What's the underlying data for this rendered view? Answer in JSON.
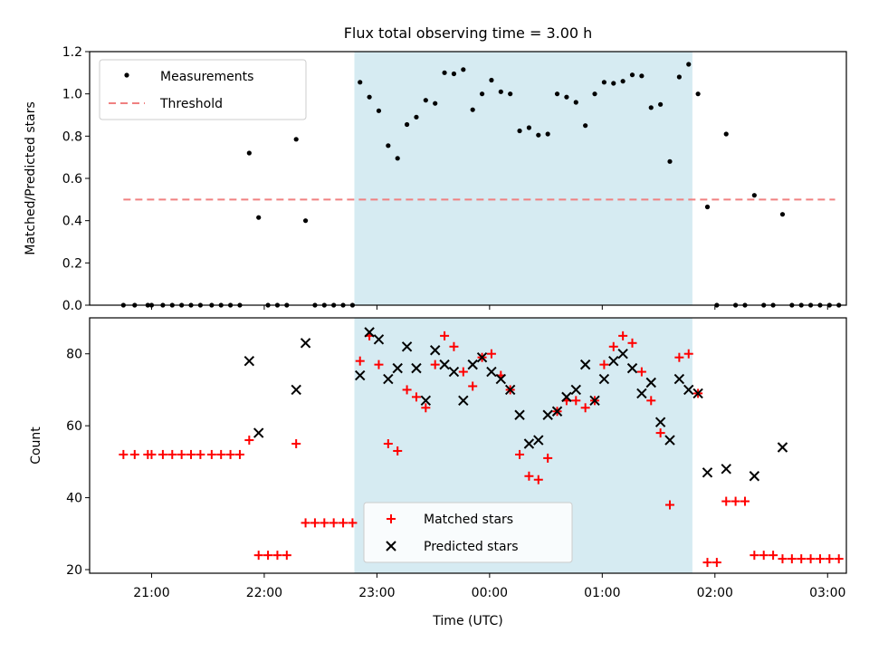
{
  "chart_data": [
    {
      "type": "scatter",
      "title": "Flux total observing time = 3.00 h",
      "xlabel": "",
      "ylabel": "Matched/Predicted stars",
      "ylim": [
        0,
        1.2
      ],
      "yticks": [
        "0.0",
        "0.2",
        "0.4",
        "0.6",
        "0.8",
        "1.0",
        "1.2"
      ],
      "xlim": [
        "20:27",
        "03:10"
      ],
      "shaded_interval": [
        "22:48",
        "01:48"
      ],
      "grid": false,
      "legend_position": "upper-left",
      "series": [
        {
          "name": "Measurements",
          "marker": "dot",
          "color": "#000000",
          "points": [
            [
              "20:45",
              0.0
            ],
            [
              "20:51",
              0.0
            ],
            [
              "20:58",
              0.0
            ],
            [
              "21:00",
              0.0
            ],
            [
              "21:06",
              0.0
            ],
            [
              "21:11",
              0.0
            ],
            [
              "21:16",
              0.0
            ],
            [
              "21:21",
              0.0
            ],
            [
              "21:26",
              0.0
            ],
            [
              "21:32",
              0.0
            ],
            [
              "21:37",
              0.0
            ],
            [
              "21:42",
              0.0
            ],
            [
              "21:47",
              0.0
            ],
            [
              "21:52",
              0.72
            ],
            [
              "21:57",
              0.415
            ],
            [
              "22:02",
              0.0
            ],
            [
              "22:07",
              0.0
            ],
            [
              "22:12",
              0.0
            ],
            [
              "22:17",
              0.785
            ],
            [
              "22:22",
              0.4
            ],
            [
              "22:27",
              0.0
            ],
            [
              "22:32",
              0.0
            ],
            [
              "22:37",
              0.0
            ],
            [
              "22:42",
              0.0
            ],
            [
              "22:47",
              0.0
            ],
            [
              "22:51",
              1.055
            ],
            [
              "22:56",
              0.985
            ],
            [
              "23:01",
              0.92
            ],
            [
              "23:06",
              0.755
            ],
            [
              "23:11",
              0.695
            ],
            [
              "23:16",
              0.855
            ],
            [
              "23:21",
              0.89
            ],
            [
              "23:26",
              0.97
            ],
            [
              "23:31",
              0.955
            ],
            [
              "23:36",
              1.1
            ],
            [
              "23:41",
              1.095
            ],
            [
              "23:46",
              1.115
            ],
            [
              "23:51",
              0.925
            ],
            [
              "23:56",
              1.0
            ],
            [
              "00:01",
              1.065
            ],
            [
              "00:06",
              1.01
            ],
            [
              "00:11",
              1.0
            ],
            [
              "00:16",
              0.825
            ],
            [
              "00:21",
              0.84
            ],
            [
              "00:26",
              0.805
            ],
            [
              "00:31",
              0.81
            ],
            [
              "00:36",
              1.0
            ],
            [
              "00:41",
              0.985
            ],
            [
              "00:46",
              0.96
            ],
            [
              "00:51",
              0.85
            ],
            [
              "00:56",
              1.0
            ],
            [
              "01:01",
              1.055
            ],
            [
              "01:06",
              1.05
            ],
            [
              "01:11",
              1.06
            ],
            [
              "01:16",
              1.09
            ],
            [
              "01:21",
              1.085
            ],
            [
              "01:26",
              0.935
            ],
            [
              "01:31",
              0.95
            ],
            [
              "01:36",
              0.68
            ],
            [
              "01:41",
              1.08
            ],
            [
              "01:46",
              1.14
            ],
            [
              "01:51",
              1.0
            ],
            [
              "01:56",
              0.465
            ],
            [
              "02:01",
              0.0
            ],
            [
              "02:06",
              0.81
            ],
            [
              "02:11",
              0.0
            ],
            [
              "02:16",
              0.0
            ],
            [
              "02:21",
              0.52
            ],
            [
              "02:26",
              0.0
            ],
            [
              "02:31",
              0.0
            ],
            [
              "02:36",
              0.43
            ],
            [
              "02:41",
              0.0
            ],
            [
              "02:46",
              0.0
            ],
            [
              "02:51",
              0.0
            ],
            [
              "02:56",
              0.0
            ],
            [
              "03:01",
              0.0
            ],
            [
              "03:06",
              0.0
            ]
          ]
        },
        {
          "name": "Threshold",
          "marker": "dashed-line",
          "color": "#f08080",
          "points": [
            [
              "20:45",
              0.5
            ],
            [
              "03:04",
              0.5
            ]
          ]
        }
      ]
    },
    {
      "type": "scatter",
      "title": "",
      "xlabel": "Time (UTC)",
      "ylabel": "Count",
      "ylim": [
        19,
        90
      ],
      "yticks": [
        "20",
        "40",
        "60",
        "80"
      ],
      "xlim": [
        "20:27",
        "03:10"
      ],
      "xticks": [
        "21:00",
        "22:00",
        "23:00",
        "00:00",
        "01:00",
        "02:00",
        "03:00"
      ],
      "shaded_interval": [
        "22:48",
        "01:48"
      ],
      "grid": false,
      "legend_position": "lower-center",
      "series": [
        {
          "name": "Matched stars",
          "marker": "plus",
          "color": "#ff0000",
          "points": [
            [
              "20:45",
              52
            ],
            [
              "20:51",
              52
            ],
            [
              "20:58",
              52
            ],
            [
              "21:00",
              52
            ],
            [
              "21:06",
              52
            ],
            [
              "21:11",
              52
            ],
            [
              "21:16",
              52
            ],
            [
              "21:21",
              52
            ],
            [
              "21:26",
              52
            ],
            [
              "21:32",
              52
            ],
            [
              "21:37",
              52
            ],
            [
              "21:42",
              52
            ],
            [
              "21:47",
              52
            ],
            [
              "21:52",
              56
            ],
            [
              "21:57",
              24
            ],
            [
              "22:02",
              24
            ],
            [
              "22:07",
              24
            ],
            [
              "22:12",
              24
            ],
            [
              "22:17",
              55
            ],
            [
              "22:22",
              33
            ],
            [
              "22:27",
              33
            ],
            [
              "22:32",
              33
            ],
            [
              "22:37",
              33
            ],
            [
              "22:42",
              33
            ],
            [
              "22:47",
              33
            ],
            [
              "22:51",
              78
            ],
            [
              "22:56",
              85
            ],
            [
              "23:01",
              77
            ],
            [
              "23:06",
              55
            ],
            [
              "23:11",
              53
            ],
            [
              "23:16",
              70
            ],
            [
              "23:21",
              68
            ],
            [
              "23:26",
              65
            ],
            [
              "23:31",
              77
            ],
            [
              "23:36",
              85
            ],
            [
              "23:41",
              82
            ],
            [
              "23:46",
              75
            ],
            [
              "23:51",
              71
            ],
            [
              "23:56",
              79
            ],
            [
              "00:01",
              80
            ],
            [
              "00:06",
              74
            ],
            [
              "00:11",
              70
            ],
            [
              "00:16",
              52
            ],
            [
              "00:21",
              46
            ],
            [
              "00:26",
              45
            ],
            [
              "00:31",
              51
            ],
            [
              "00:36",
              64
            ],
            [
              "00:41",
              67
            ],
            [
              "00:46",
              67
            ],
            [
              "00:51",
              65
            ],
            [
              "00:56",
              67
            ],
            [
              "01:01",
              77
            ],
            [
              "01:06",
              82
            ],
            [
              "01:11",
              85
            ],
            [
              "01:16",
              83
            ],
            [
              "01:21",
              75
            ],
            [
              "01:26",
              67
            ],
            [
              "01:31",
              58
            ],
            [
              "01:36",
              38
            ],
            [
              "01:41",
              79
            ],
            [
              "01:46",
              80
            ],
            [
              "01:51",
              69
            ],
            [
              "01:56",
              22
            ],
            [
              "02:01",
              22
            ],
            [
              "02:06",
              39
            ],
            [
              "02:11",
              39
            ],
            [
              "02:16",
              39
            ],
            [
              "02:21",
              24
            ],
            [
              "02:26",
              24
            ],
            [
              "02:31",
              24
            ],
            [
              "02:36",
              23
            ],
            [
              "02:41",
              23
            ],
            [
              "02:46",
              23
            ],
            [
              "02:51",
              23
            ],
            [
              "02:56",
              23
            ],
            [
              "03:01",
              23
            ],
            [
              "03:06",
              23
            ]
          ]
        },
        {
          "name": "Predicted stars",
          "marker": "x",
          "color": "#000000",
          "points": [
            [
              "21:52",
              78
            ],
            [
              "21:57",
              58
            ],
            [
              "22:17",
              70
            ],
            [
              "22:22",
              83
            ],
            [
              "22:51",
              74
            ],
            [
              "22:56",
              86
            ],
            [
              "23:01",
              84
            ],
            [
              "23:06",
              73
            ],
            [
              "23:11",
              76
            ],
            [
              "23:16",
              82
            ],
            [
              "23:21",
              76
            ],
            [
              "23:26",
              67
            ],
            [
              "23:31",
              81
            ],
            [
              "23:36",
              77
            ],
            [
              "23:41",
              75
            ],
            [
              "23:46",
              67
            ],
            [
              "23:51",
              77
            ],
            [
              "23:56",
              79
            ],
            [
              "00:01",
              75
            ],
            [
              "00:06",
              73
            ],
            [
              "00:11",
              70
            ],
            [
              "00:16",
              63
            ],
            [
              "00:21",
              55
            ],
            [
              "00:26",
              56
            ],
            [
              "00:31",
              63
            ],
            [
              "00:36",
              64
            ],
            [
              "00:41",
              68
            ],
            [
              "00:46",
              70
            ],
            [
              "00:51",
              77
            ],
            [
              "00:56",
              67
            ],
            [
              "01:01",
              73
            ],
            [
              "01:06",
              78
            ],
            [
              "01:11",
              80
            ],
            [
              "01:16",
              76
            ],
            [
              "01:21",
              69
            ],
            [
              "01:26",
              72
            ],
            [
              "01:31",
              61
            ],
            [
              "01:36",
              56
            ],
            [
              "01:41",
              73
            ],
            [
              "01:46",
              70
            ],
            [
              "01:51",
              69
            ],
            [
              "01:56",
              47
            ],
            [
              "02:06",
              48
            ],
            [
              "02:21",
              46
            ],
            [
              "02:36",
              54
            ]
          ]
        }
      ]
    }
  ]
}
